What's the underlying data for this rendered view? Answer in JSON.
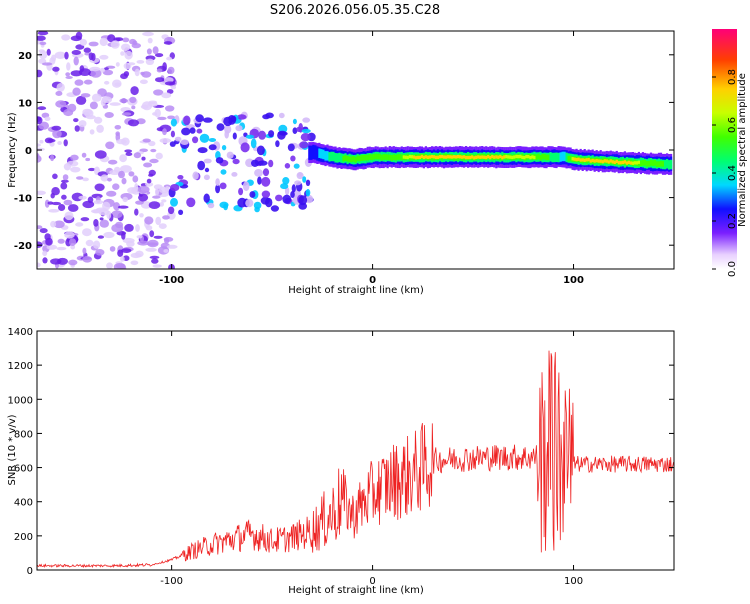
{
  "title": "S206.2026.056.05.35.C28",
  "chart_data": [
    {
      "type": "heatmap",
      "title": "S206.2026.056.05.35.C28",
      "xlabel": "Height of straight line (km)",
      "ylabel": "Frequency (Hz)",
      "xlim": [
        -167,
        150
      ],
      "ylim": [
        -25,
        25
      ],
      "xticks": [
        -100,
        0,
        100
      ],
      "xtick_labels": [
        "-100",
        "0",
        "100"
      ],
      "yticks": [
        -20,
        -10,
        0,
        10,
        20
      ],
      "ytick_labels": [
        "-20",
        "-10",
        "0",
        "10",
        "20"
      ],
      "colorbar": {
        "label": "Normalized spectral amplitude",
        "range": [
          0,
          1
        ],
        "ticks": [
          0.0,
          0.2,
          0.4,
          0.6,
          0.8
        ],
        "tick_labels": [
          "0.0",
          "0.2",
          "0.4",
          "0.6",
          "0.8"
        ]
      },
      "ridge": {
        "description_free": true,
        "x": [
          -30,
          -20,
          -10,
          0,
          20,
          50,
          80,
          95,
          100,
          120,
          148
        ],
        "frequency": [
          -0.5,
          -1.5,
          -2,
          -1.5,
          -1.5,
          -1.5,
          -1.5,
          -1.5,
          -2,
          -2.5,
          -3
        ],
        "amplitude": [
          0.3,
          0.5,
          0.6,
          0.55,
          0.75,
          0.8,
          0.7,
          0.4,
          0.8,
          0.85,
          0.5
        ]
      }
    },
    {
      "type": "line",
      "xlabel": "Height of straight line (km)",
      "ylabel": "SNR (10 * v/v)",
      "xlim": [
        -167,
        150
      ],
      "ylim": [
        0,
        1400
      ],
      "xticks": [
        -100,
        0,
        100
      ],
      "xtick_labels": [
        "-100",
        "0",
        "100"
      ],
      "yticks": [
        0,
        200,
        400,
        600,
        800,
        1000,
        1200,
        1400
      ],
      "ytick_labels": [
        "0",
        "200",
        "400",
        "600",
        "800",
        "1000",
        "1200",
        "1400"
      ],
      "series": [
        {
          "name": "SNR",
          "color": "#ee2222",
          "x": [
            -167,
            -130,
            -110,
            -100,
            -90,
            -80,
            -70,
            -60,
            -50,
            -40,
            -30,
            -20,
            -15,
            -10,
            0,
            10,
            20,
            30,
            40,
            60,
            80,
            85,
            90,
            95,
            100,
            110,
            130,
            150
          ],
          "y": [
            25,
            25,
            30,
            60,
            110,
            150,
            180,
            210,
            170,
            190,
            230,
            330,
            420,
            320,
            450,
            520,
            560,
            640,
            650,
            660,
            660,
            670,
            700,
            640,
            620,
            620,
            620,
            620
          ]
        }
      ]
    }
  ]
}
